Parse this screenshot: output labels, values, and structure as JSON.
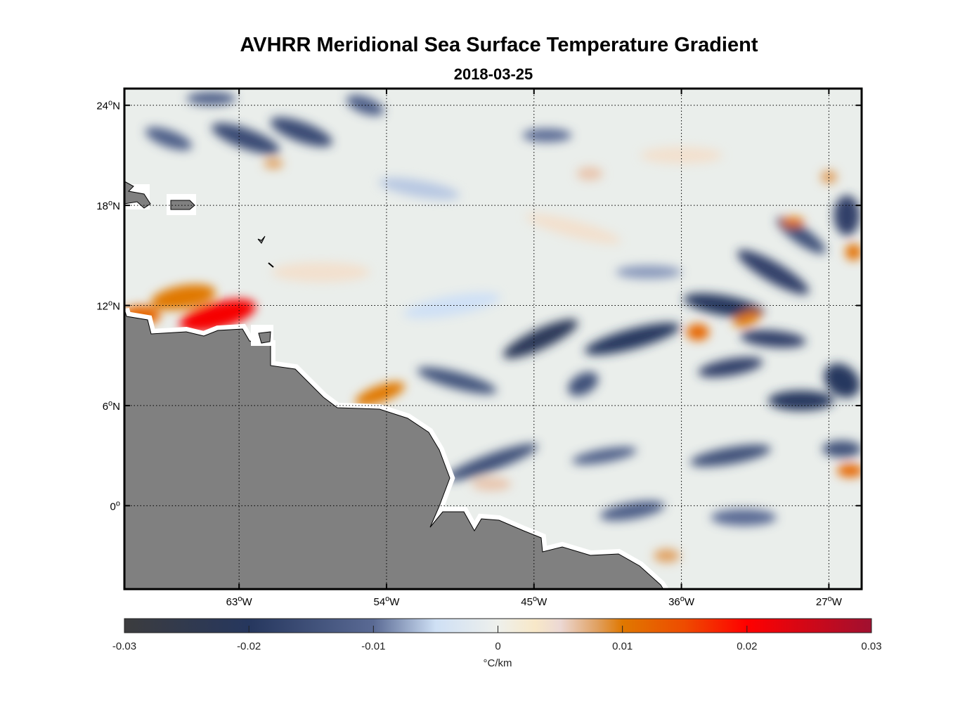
{
  "chart_data": {
    "type": "heatmap",
    "title": "AVHRR Meridional Sea Surface Temperature Gradient",
    "subtitle": "2018-03-25",
    "lon_range": [
      -70,
      -25
    ],
    "lat_range": [
      -5,
      25
    ],
    "lon_ticks": [
      {
        "value": -63,
        "deg": "63",
        "hemi": "W"
      },
      {
        "value": -54,
        "deg": "54",
        "hemi": "W"
      },
      {
        "value": -45,
        "deg": "45",
        "hemi": "W"
      },
      {
        "value": -36,
        "deg": "36",
        "hemi": "W"
      },
      {
        "value": -27,
        "deg": "27",
        "hemi": "W"
      }
    ],
    "lat_ticks": [
      {
        "value": 24,
        "deg": "24",
        "hemi": "N"
      },
      {
        "value": 18,
        "deg": "18",
        "hemi": "N"
      },
      {
        "value": 12,
        "deg": "12",
        "hemi": "N"
      },
      {
        "value": 6,
        "deg": "6",
        "hemi": "N"
      },
      {
        "value": 0,
        "deg": "0",
        "hemi": ""
      }
    ],
    "grid": true,
    "land_color": "#808080",
    "colorbar": {
      "label": "°C/km",
      "range": [
        -0.03,
        0.03
      ],
      "ticks": [
        "-0.03",
        "-0.02",
        "-0.01",
        "0",
        "0.01",
        "0.02",
        "0.03"
      ],
      "tick_values": [
        -0.03,
        -0.02,
        -0.01,
        0,
        0.01,
        0.02,
        0.03
      ],
      "stops": [
        [
          -0.03,
          "#3c3c3e"
        ],
        [
          -0.02,
          "#26375e"
        ],
        [
          -0.01,
          "#5a6a94"
        ],
        [
          -0.005,
          "#cfe0f5"
        ],
        [
          0,
          "#eef0ec"
        ],
        [
          0.003,
          "#f8e8c8"
        ],
        [
          0.005,
          "#ecd8d4"
        ],
        [
          0.008,
          "#e0a060"
        ],
        [
          0.01,
          "#e07800"
        ],
        [
          0.015,
          "#ee4b00"
        ],
        [
          0.02,
          "#ff0000"
        ],
        [
          0.03,
          "#a01030"
        ]
      ]
    },
    "features": [
      {
        "lon": -64.3,
        "lat": 11.4,
        "value": 0.021,
        "rx": 2.4,
        "ry": 0.8,
        "rot": 15
      },
      {
        "lon": -66.4,
        "lat": 12.5,
        "value": 0.01,
        "rx": 2.0,
        "ry": 0.7,
        "rot": 10
      },
      {
        "lon": -69.0,
        "lat": 11.4,
        "value": 0.012,
        "rx": 1.2,
        "ry": 0.6,
        "rot": 0
      },
      {
        "lon": -54.4,
        "lat": 6.7,
        "value": 0.01,
        "rx": 1.6,
        "ry": 0.5,
        "rot": 20
      },
      {
        "lon": -44.6,
        "lat": 10.0,
        "value": -0.022,
        "rx": 2.5,
        "ry": 0.6,
        "rot": 25
      },
      {
        "lon": -39.0,
        "lat": 10.0,
        "value": -0.02,
        "rx": 3.0,
        "ry": 0.6,
        "rot": 15
      },
      {
        "lon": -33.4,
        "lat": 12.0,
        "value": -0.02,
        "rx": 2.5,
        "ry": 0.6,
        "rot": -10
      },
      {
        "lon": -30.4,
        "lat": 14.0,
        "value": -0.018,
        "rx": 2.5,
        "ry": 0.6,
        "rot": -30
      },
      {
        "lon": -28.7,
        "lat": 16.2,
        "value": -0.015,
        "rx": 1.8,
        "ry": 0.5,
        "rot": -35
      },
      {
        "lon": -30.4,
        "lat": 10.0,
        "value": -0.018,
        "rx": 2.0,
        "ry": 0.5,
        "rot": -5
      },
      {
        "lon": -28.7,
        "lat": 6.3,
        "value": -0.02,
        "rx": 2.0,
        "ry": 0.6,
        "rot": 0
      },
      {
        "lon": -33.0,
        "lat": 8.3,
        "value": -0.018,
        "rx": 2.0,
        "ry": 0.5,
        "rot": 10
      },
      {
        "lon": -26.2,
        "lat": 7.5,
        "value": -0.02,
        "rx": 1.2,
        "ry": 0.9,
        "rot": -40
      },
      {
        "lon": -26.2,
        "lat": 3.4,
        "value": -0.015,
        "rx": 1.2,
        "ry": 0.5,
        "rot": 0
      },
      {
        "lon": -25.9,
        "lat": 17.4,
        "value": -0.018,
        "rx": 0.8,
        "ry": 1.2,
        "rot": 0
      },
      {
        "lon": -47.6,
        "lat": 2.6,
        "value": -0.015,
        "rx": 3.0,
        "ry": 0.5,
        "rot": 20
      },
      {
        "lon": -40.7,
        "lat": 3.0,
        "value": -0.012,
        "rx": 2.0,
        "ry": 0.4,
        "rot": 10
      },
      {
        "lon": -33.0,
        "lat": 3.0,
        "value": -0.015,
        "rx": 2.5,
        "ry": 0.5,
        "rot": 10
      },
      {
        "lon": -49.7,
        "lat": 7.5,
        "value": -0.014,
        "rx": 2.5,
        "ry": 0.5,
        "rot": -15
      },
      {
        "lon": -42.0,
        "lat": 7.3,
        "value": -0.015,
        "rx": 1.0,
        "ry": 0.6,
        "rot": 30
      },
      {
        "lon": -62.6,
        "lat": 22.0,
        "value": -0.016,
        "rx": 2.2,
        "ry": 0.6,
        "rot": -20
      },
      {
        "lon": -59.2,
        "lat": 22.4,
        "value": -0.016,
        "rx": 2.0,
        "ry": 0.6,
        "rot": -20
      },
      {
        "lon": -67.3,
        "lat": 22.0,
        "value": -0.012,
        "rx": 1.5,
        "ry": 0.5,
        "rot": -20
      },
      {
        "lon": -55.3,
        "lat": 24.0,
        "value": -0.012,
        "rx": 1.2,
        "ry": 0.5,
        "rot": -20
      },
      {
        "lon": -64.7,
        "lat": 24.4,
        "value": -0.012,
        "rx": 1.5,
        "ry": 0.4,
        "rot": 0
      },
      {
        "lon": -44.2,
        "lat": 22.2,
        "value": -0.01,
        "rx": 1.5,
        "ry": 0.4,
        "rot": 0
      },
      {
        "lon": -39.0,
        "lat": -0.3,
        "value": -0.012,
        "rx": 2.0,
        "ry": 0.5,
        "rot": 10
      },
      {
        "lon": -32.2,
        "lat": -0.7,
        "value": -0.01,
        "rx": 2.0,
        "ry": 0.5,
        "rot": 0
      },
      {
        "lon": -25.7,
        "lat": 2.1,
        "value": 0.012,
        "rx": 0.8,
        "ry": 0.4,
        "rot": 0
      },
      {
        "lon": -25.5,
        "lat": 15.2,
        "value": 0.011,
        "rx": 0.5,
        "ry": 0.5,
        "rot": 0
      },
      {
        "lon": -29.2,
        "lat": 17.0,
        "value": 0.011,
        "rx": 0.7,
        "ry": 0.3,
        "rot": 0
      },
      {
        "lon": -35.0,
        "lat": 10.4,
        "value": 0.012,
        "rx": 0.7,
        "ry": 0.5,
        "rot": 0
      },
      {
        "lon": -32.0,
        "lat": 11.2,
        "value": 0.01,
        "rx": 0.9,
        "ry": 0.4,
        "rot": 20
      },
      {
        "lon": -36.9,
        "lat": -3.0,
        "value": 0.008,
        "rx": 0.8,
        "ry": 0.4,
        "rot": 0
      },
      {
        "lon": -47.6,
        "lat": 1.3,
        "value": 0.006,
        "rx": 1.2,
        "ry": 0.4,
        "rot": 0
      },
      {
        "lon": -41.6,
        "lat": 19.9,
        "value": 0.006,
        "rx": 0.8,
        "ry": 0.4,
        "rot": 0
      },
      {
        "lon": -60.9,
        "lat": 20.5,
        "value": 0.008,
        "rx": 0.6,
        "ry": 0.3,
        "rot": 0
      },
      {
        "lon": -42.6,
        "lat": 16.6,
        "value": 0.004,
        "rx": 3.0,
        "ry": 0.5,
        "rot": -15
      },
      {
        "lon": -27.0,
        "lat": 19.7,
        "value": 0.008,
        "rx": 0.5,
        "ry": 0.4,
        "rot": 0
      },
      {
        "lon": -52.0,
        "lat": 19.0,
        "value": -0.006,
        "rx": 2.5,
        "ry": 0.5,
        "rot": -10
      },
      {
        "lon": -58.0,
        "lat": 14.0,
        "value": 0.004,
        "rx": 3.0,
        "ry": 0.6,
        "rot": 0
      },
      {
        "lon": -50.0,
        "lat": 12.0,
        "value": -0.005,
        "rx": 3.0,
        "ry": 0.6,
        "rot": 10
      },
      {
        "lon": -36.0,
        "lat": 21.0,
        "value": 0.004,
        "rx": 2.5,
        "ry": 0.5,
        "rot": 0
      },
      {
        "lon": -38.0,
        "lat": 14.0,
        "value": -0.008,
        "rx": 2.0,
        "ry": 0.4,
        "rot": 0
      }
    ]
  }
}
